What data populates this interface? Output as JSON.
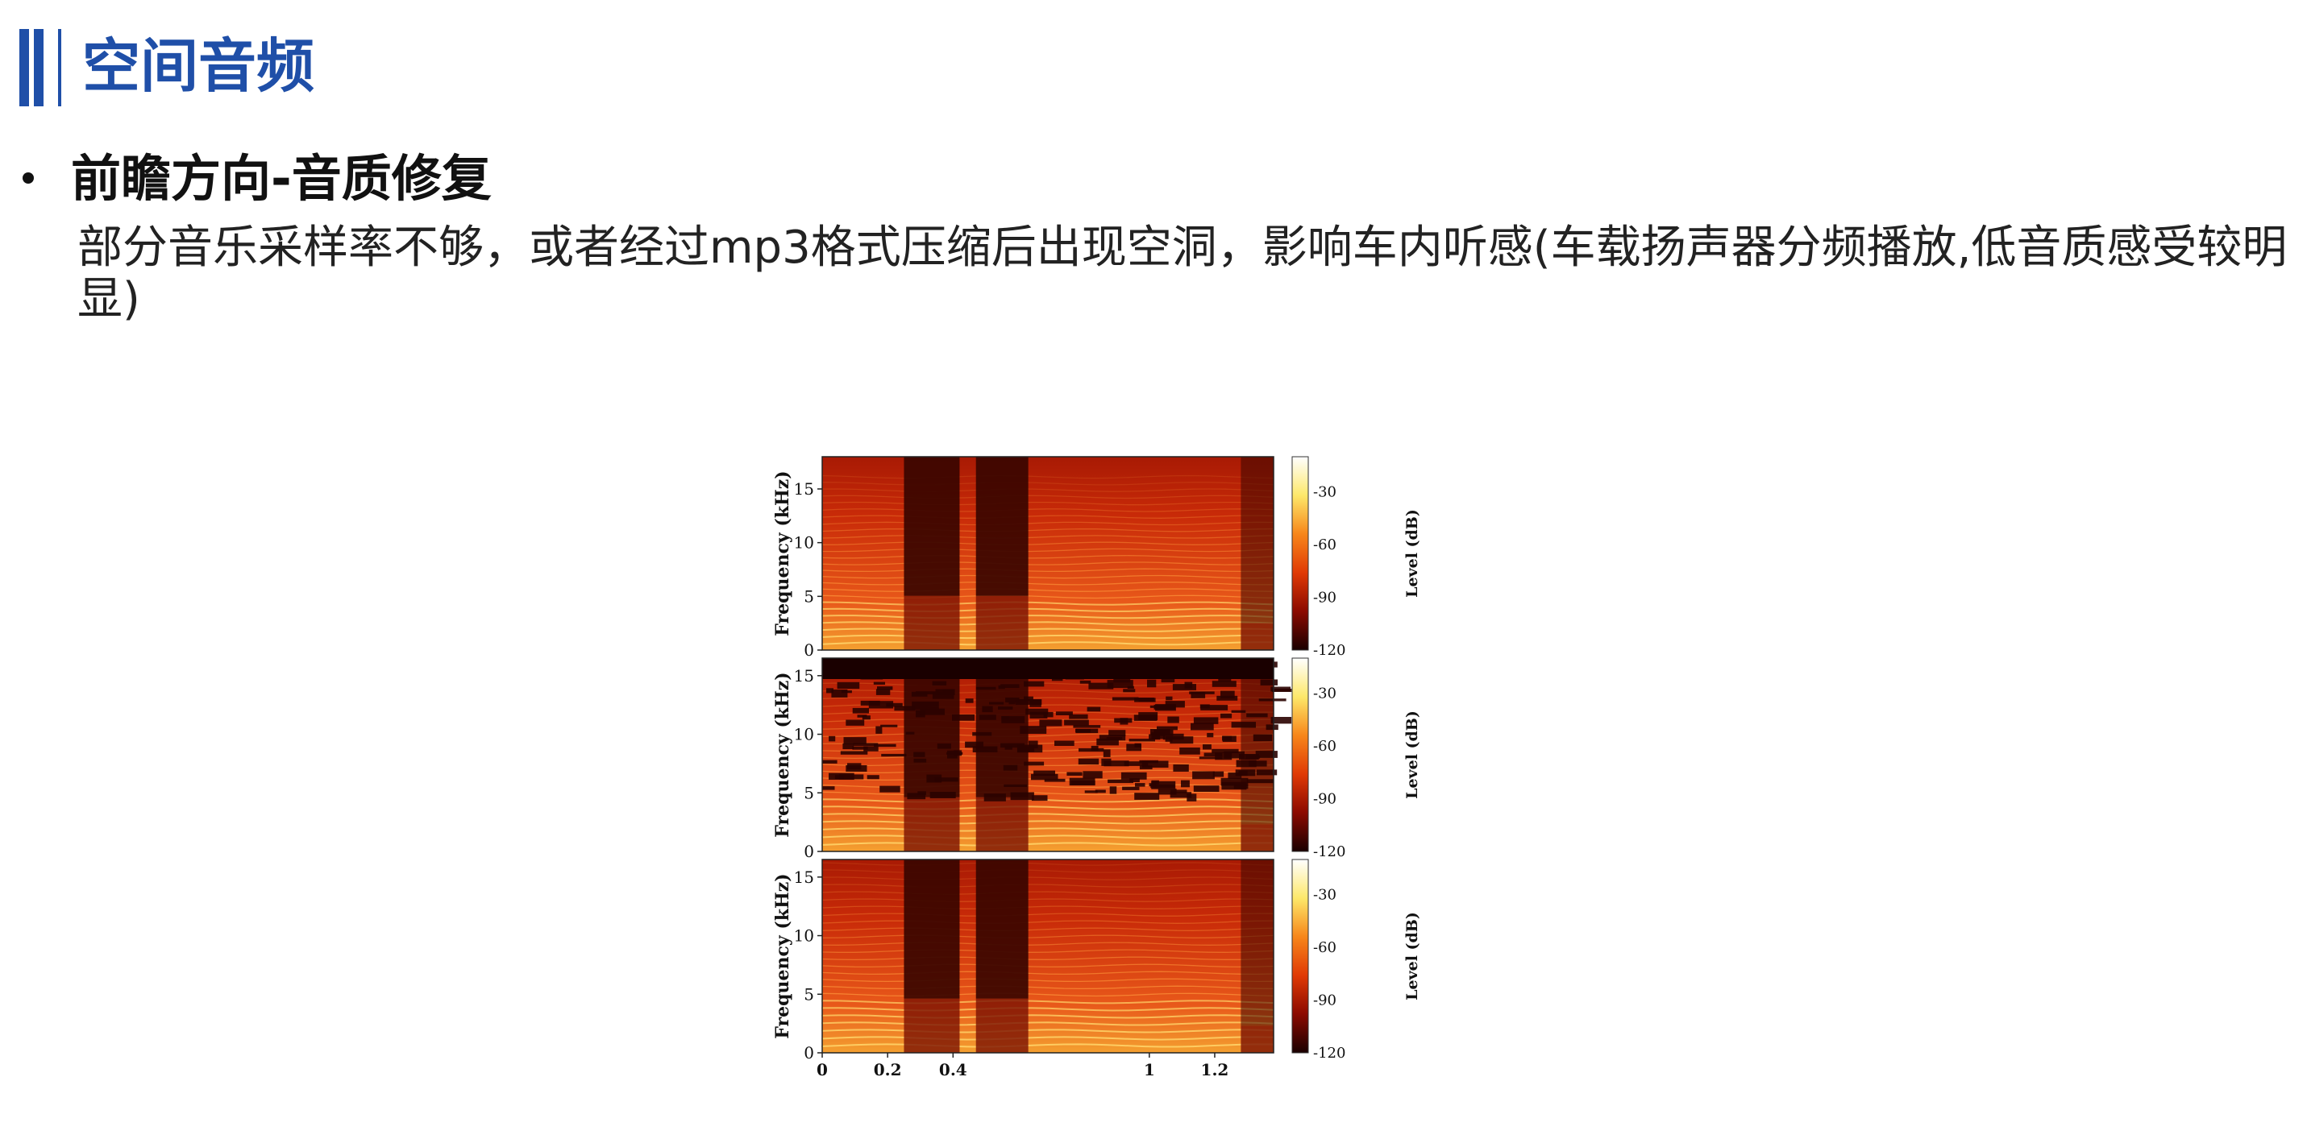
{
  "header": {
    "title": "空间音频",
    "accent": "#1f4fa8"
  },
  "section": {
    "heading": "前瞻方向-音质修复",
    "body": "部分音乐采样率不够，或者经过mp3格式压缩后出现空洞，影响车内听感(车载扬声器分频播放,低音质感受较明显)"
  },
  "chart_data": {
    "type": "heatmap",
    "panels": [
      {
        "name": "",
        "xlim": [
          0,
          1.38
        ],
        "ylim": [
          0,
          18
        ],
        "y_ticks": [
          0,
          5,
          10,
          15
        ],
        "ylabel": "Frequency (kHz)",
        "colorbar_label": "Level (dB)",
        "colorbar_ticks": [
          -30,
          -60,
          -90,
          -120
        ]
      },
      {
        "name": "",
        "xlim": [
          0,
          1.38
        ],
        "ylim": [
          0,
          16.5
        ],
        "y_ticks": [
          0,
          5,
          10,
          15
        ],
        "ylabel": "Frequency (kHz)",
        "colorbar_label": "Level (dB)",
        "colorbar_ticks": [
          -30,
          -60,
          -90,
          -120
        ]
      },
      {
        "name": "",
        "xlim": [
          0,
          1.38
        ],
        "ylim": [
          0,
          16.5
        ],
        "y_ticks": [
          0,
          5,
          10,
          15
        ],
        "ylabel": "Frequency (kHz)",
        "colorbar_label": "Level (dB)",
        "colorbar_ticks": [
          -30,
          -60,
          -90,
          -120
        ]
      }
    ],
    "x_ticks": [
      0,
      0.2,
      0.4,
      1,
      1.2
    ],
    "x_tick_labels": [
      "0",
      "0.2",
      "0.4",
      "1",
      "1.2"
    ],
    "colormap": [
      "#1a0000",
      "#8b0a00",
      "#e03a05",
      "#f7861a",
      "#fde86a",
      "#ffffff"
    ],
    "gaps": [
      [
        0.25,
        0.42
      ],
      [
        0.47,
        0.63
      ],
      [
        1.28,
        1.38
      ]
    ]
  }
}
